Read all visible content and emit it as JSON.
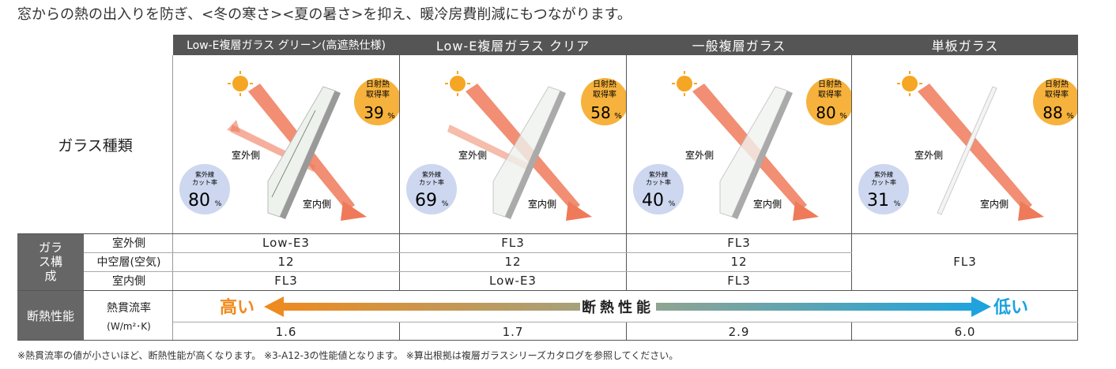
{
  "top_note": "窓からの熱の出入りを防ぎ、<冬の寒さ><夏の暑さ>を抑え、暖冷房費削減にもつながります。",
  "header": {
    "col1": "Low-E複層ガラス グリーン(高遮熱仕様)",
    "col2": "Low-E複層ガラス クリア",
    "col3": "一般複層ガラス",
    "col4": "単板ガラス"
  },
  "rows": {
    "glass_type_label": "ガラス種類",
    "composition_label": "ガラス構成",
    "outside_label": "室外側",
    "air_label": "中空層(空気)",
    "inside_label": "室内側",
    "performance_label": "断熱性能",
    "u_label": "熱貫流率",
    "u_unit": "(W/m²･K)"
  },
  "diagram_labels": {
    "outside": "室外側",
    "inside": "室内側",
    "solar_line1": "日射熱",
    "solar_line2": "取得率",
    "uv_line1": "紫外線",
    "uv_line2": "カット率",
    "percent": "%"
  },
  "columns": [
    {
      "solar": "39",
      "uv": "80",
      "outside": "Low-E3",
      "air": "12",
      "inside": "FL3",
      "u_value": "1.6"
    },
    {
      "solar": "58",
      "uv": "69",
      "outside": "FL3",
      "air": "12",
      "inside": "Low-E3",
      "u_value": "1.7"
    },
    {
      "solar": "80",
      "uv": "40",
      "outside": "FL3",
      "air": "12",
      "inside": "FL3",
      "u_value": "2.9"
    },
    {
      "solar": "88",
      "uv": "31",
      "single": "FL3",
      "u_value": "6.0"
    }
  ],
  "performance_bar": {
    "high": "高い",
    "mid": "断熱性能",
    "low": "低い"
  },
  "footnote": "※熱貫流率の値が小さいほど、断熱性能が高くなります。 ※3-A12-3の性能値となります。 ※算出根拠は複層ガラスシリーズカタログを参照してください。",
  "colors": {
    "header": "#555555",
    "solar_badge": "#f6b23c",
    "uv_badge": "#cdd7ef",
    "arrow_high": "#f08a1c",
    "arrow_low": "#1aa3e0",
    "ray": "#ee7a5a"
  }
}
